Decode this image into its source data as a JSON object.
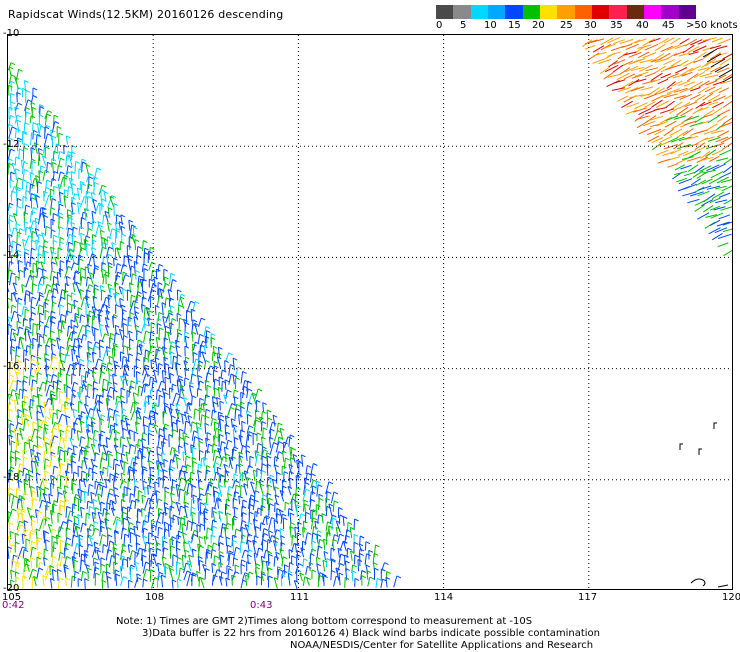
{
  "title": "Rapidscat Winds(12.5KM) 20160126 descending",
  "colorbar": {
    "labels": [
      "0",
      "5",
      "10",
      "15",
      "20",
      "25",
      "30",
      "35",
      "40",
      "45",
      ">50 knots"
    ],
    "colors": [
      "#4a4a4a",
      "#8a8a8a",
      "#00d8ff",
      "#00a8ff",
      "#0048ff",
      "#00c000",
      "#ffe000",
      "#ffa000",
      "#ff6000",
      "#e00000",
      "#ff2050",
      "#6a2a10",
      "#ff00ff",
      "#a000c8",
      "#600090"
    ]
  },
  "axes": {
    "lat_labels": [
      "-10",
      "-12",
      "-14",
      "-16",
      "-18",
      "-20"
    ],
    "lon_labels": [
      "105",
      "108",
      "111",
      "114",
      "117",
      "120"
    ],
    "lat_range": [
      -20,
      -10
    ],
    "lon_range": [
      105,
      120
    ],
    "grid": "dotted"
  },
  "time_labels": [
    "0:42",
    "0:43"
  ],
  "notes": {
    "line1": "Note: 1) Times are GMT 2)Times along bottom correspond to measurement at -10S",
    "line2": "3)Data buffer is 22 hrs from 20160126 4) Black wind barbs indicate possible contamination",
    "line3": "NOAA/NESDIS/Center for Satellite Applications and Research"
  },
  "swaths": [
    {
      "name": "west-swath",
      "region": "lower-left triangle",
      "dominant_speeds": "10-20 knots",
      "colors": [
        "#0048ff",
        "#00c000",
        "#00d8ff",
        "#ffe000"
      ]
    },
    {
      "name": "east-swath",
      "region": "upper-right corner",
      "dominant_speeds": "20-40 knots",
      "colors": [
        "#ffa000",
        "#ff6000",
        "#e00000",
        "#00c000",
        "#0048ff"
      ]
    }
  ]
}
